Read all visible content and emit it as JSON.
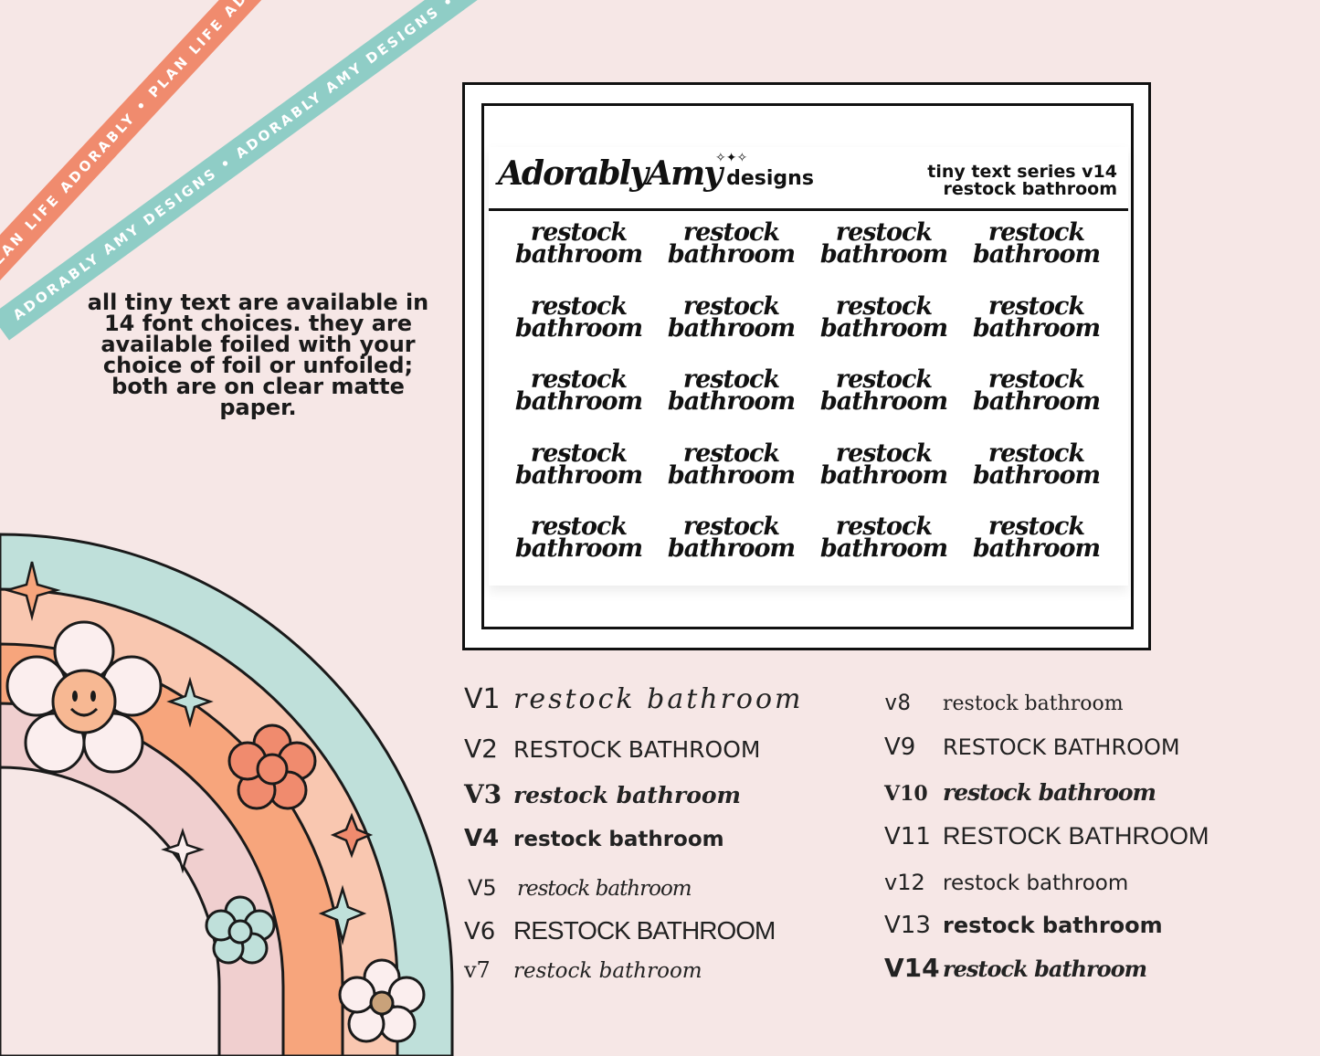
{
  "ribbons": {
    "coral_text": "PLAN LIFE ADORABLY • PLAN LIFE ADORABLY • PLAN LIFE ADORABLY •",
    "mint_text": "ADORABLY AMY DESIGNS • ADORABLY AMY DESIGNS • ADORABLY AMY DESIGNS •"
  },
  "description": "all tiny text are available in 14 font choices. they are available foiled with your choice of foil or unfoiled; both are on clear matte paper.",
  "sheet": {
    "brand_script": "AdorablyAmy",
    "brand_designs": "designs",
    "series_line1": "tiny text series v14",
    "series_line2": "restock bathroom",
    "sticker_line1": "restock",
    "sticker_line2": "bathroom"
  },
  "versions": [
    {
      "label": "V1",
      "text": "restock bathroom"
    },
    {
      "label": "V2",
      "text": "RESTOCK BATHROOM"
    },
    {
      "label": "V3",
      "text": "restock bathroom"
    },
    {
      "label": "V4",
      "text": "restock bathroom"
    },
    {
      "label": "V5",
      "text": "restock bathroom"
    },
    {
      "label": "V6",
      "text": "RESTOCK BATHROOM"
    },
    {
      "label": "v7",
      "text": "restock bathroom"
    },
    {
      "label": "v8",
      "text": "restock bathroom"
    },
    {
      "label": "V9",
      "text": "RESTOCK BATHROOM"
    },
    {
      "label": "V10",
      "text": "restock bathroom"
    },
    {
      "label": "V11",
      "text": "RESTOCK BATHROOM"
    },
    {
      "label": "v12",
      "text": "restock bathroom"
    },
    {
      "label": "V13",
      "text": "restock bathroom"
    },
    {
      "label": "V14",
      "text": "restock bathroom"
    }
  ],
  "colors": {
    "background": "#f6e7e6",
    "coral": "#f08b6e",
    "mint": "#8fcdc6",
    "peach": "#f7a57c",
    "pink": "#f0cfcf",
    "light_peach": "#f9c7b0"
  }
}
